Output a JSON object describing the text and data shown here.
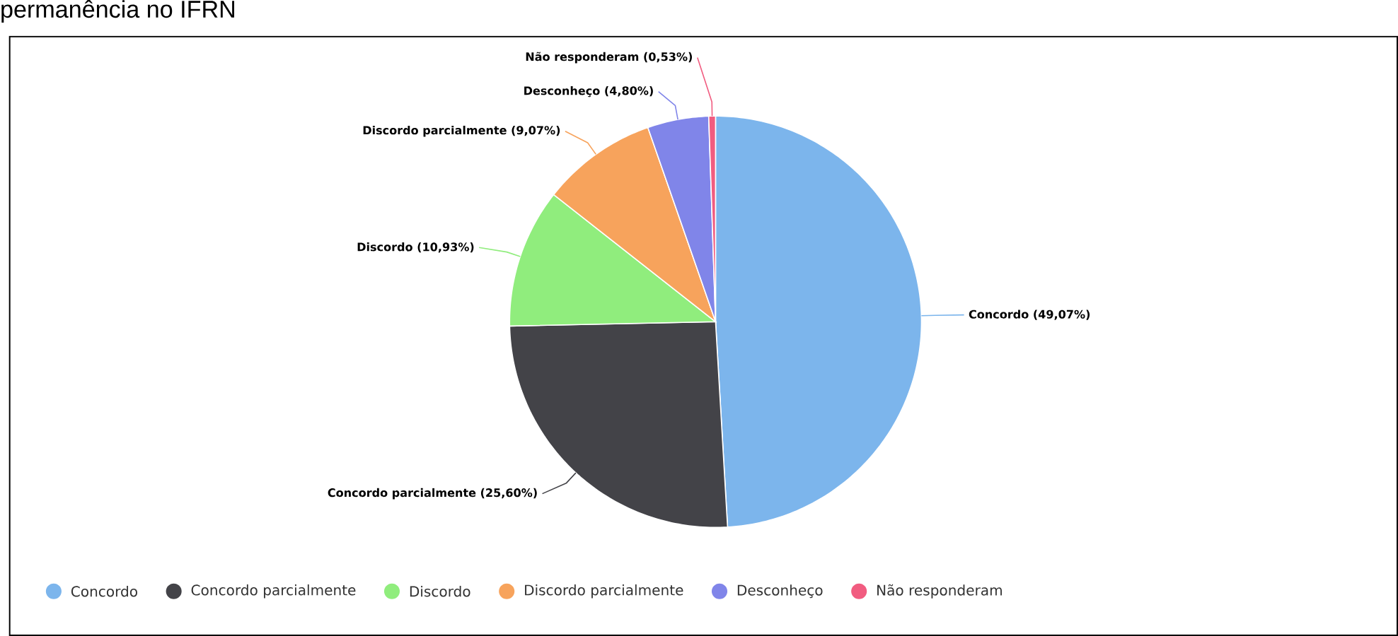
{
  "chart_data": {
    "type": "pie",
    "title": "permanência no IFRN",
    "categories": [
      "Concordo",
      "Concordo parcialmente",
      "Discordo",
      "Discordo parcialmente",
      "Desconheço",
      "Não responderam"
    ],
    "values": [
      49.07,
      25.6,
      10.93,
      9.07,
      4.8,
      0.53
    ],
    "value_labels": [
      "(49,07%)",
      "(25,60%)",
      "(10,93%)",
      "(9,07%)",
      "(4,80%)",
      "(0,53%)"
    ],
    "colors": [
      "#7cb5ec",
      "#434348",
      "#90ed7d",
      "#f7a35c",
      "#8085e9",
      "#f15c80"
    ],
    "legend": "bottom"
  }
}
